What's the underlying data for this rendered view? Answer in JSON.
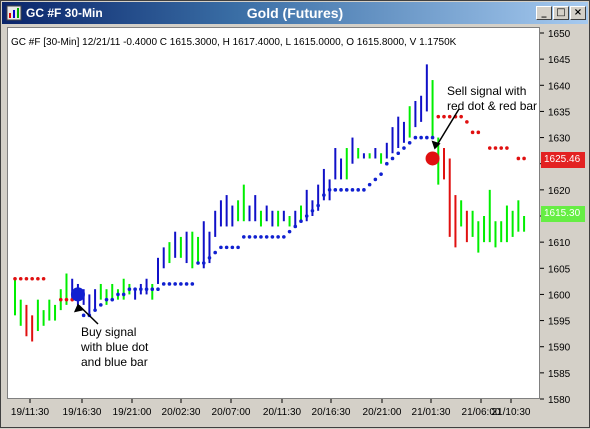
{
  "window": {
    "title_left": "GC #F 30-Min",
    "title_center": "Gold (Futures)",
    "buttons": {
      "minimize": "_",
      "maximize": "□",
      "close": "×"
    }
  },
  "info_line": "GC #F [30-Min] 12/21/11  -0.4000  C 1615.3000, H 1617.4000, L 1615.0000, O 1615.8000, V 1.1750K",
  "annotations": {
    "buy": "Buy signal\nwith blue dot\nand blue bar",
    "sell": "Sell signal with\nred dot & red bar"
  },
  "price_tags": {
    "red": "1625.46",
    "green": "1615.30"
  },
  "colors": {
    "up": "#00ee00",
    "down": "#1010c8",
    "red": "#e01010",
    "blue_dot": "#1020d0"
  },
  "chart_data": {
    "type": "bar",
    "ylim": [
      1580,
      1650
    ],
    "y_ticks": [
      1580,
      1585,
      1590,
      1595,
      1600,
      1605,
      1610,
      1615,
      1620,
      1625,
      1630,
      1635,
      1640,
      1645,
      1650
    ],
    "x_tick_labels": [
      "19/11:30",
      "19/16:30",
      "19/21:00",
      "20/02:30",
      "20/07:00",
      "20/11:30",
      "20/16:30",
      "20/21:00",
      "21/01:30",
      "21/06:00",
      "21/10:30"
    ],
    "bars": [
      [
        1603,
        1596,
        "g"
      ],
      [
        1599,
        1594,
        "g"
      ],
      [
        1598,
        1592,
        "r"
      ],
      [
        1596,
        1591,
        "r"
      ],
      [
        1599,
        1593,
        "g"
      ],
      [
        1597,
        1594,
        "g"
      ],
      [
        1599,
        1595,
        "g"
      ],
      [
        1598,
        1595,
        "g"
      ],
      [
        1601,
        1597,
        "g"
      ],
      [
        1604,
        1598,
        "g"
      ],
      [
        1603,
        1599,
        "b"
      ],
      [
        1602,
        1598,
        "b"
      ],
      [
        1601,
        1598,
        "b"
      ],
      [
        1600,
        1596,
        "b"
      ],
      [
        1601,
        1597,
        "b"
      ],
      [
        1602,
        1599,
        "g"
      ],
      [
        1601,
        1598,
        "g"
      ],
      [
        1602,
        1599,
        "g"
      ],
      [
        1601,
        1599,
        "g"
      ],
      [
        1603,
        1599,
        "g"
      ],
      [
        1602,
        1600,
        "g"
      ],
      [
        1601,
        1599,
        "b"
      ],
      [
        1602,
        1600,
        "b"
      ],
      [
        1603,
        1600,
        "b"
      ],
      [
        1602,
        1599,
        "g"
      ],
      [
        1607,
        1602,
        "b"
      ],
      [
        1609,
        1605,
        "b"
      ],
      [
        1610,
        1606,
        "g"
      ],
      [
        1612,
        1607,
        "b"
      ],
      [
        1611,
        1607,
        "g"
      ],
      [
        1612,
        1606,
        "b"
      ],
      [
        1612,
        1605,
        "g"
      ],
      [
        1611,
        1606,
        "g"
      ],
      [
        1614,
        1605,
        "b"
      ],
      [
        1612,
        1606,
        "b"
      ],
      [
        1616,
        1611,
        "b"
      ],
      [
        1618,
        1613,
        "b"
      ],
      [
        1619,
        1613,
        "b"
      ],
      [
        1617,
        1613,
        "b"
      ],
      [
        1618,
        1614,
        "g"
      ],
      [
        1621,
        1614,
        "g"
      ],
      [
        1617,
        1614,
        "b"
      ],
      [
        1619,
        1614,
        "b"
      ],
      [
        1616,
        1613,
        "g"
      ],
      [
        1617,
        1614,
        "b"
      ],
      [
        1616,
        1613,
        "b"
      ],
      [
        1616,
        1613,
        "g"
      ],
      [
        1616,
        1614,
        "b"
      ],
      [
        1615,
        1613,
        "g"
      ],
      [
        1616,
        1613,
        "b"
      ],
      [
        1617,
        1614,
        "g"
      ],
      [
        1620,
        1614,
        "b"
      ],
      [
        1618,
        1615,
        "b"
      ],
      [
        1621,
        1616,
        "b"
      ],
      [
        1624,
        1618,
        "b"
      ],
      [
        1622,
        1618,
        "b"
      ],
      [
        1628,
        1622,
        "b"
      ],
      [
        1626,
        1622,
        "b"
      ],
      [
        1628,
        1622,
        "g"
      ],
      [
        1630,
        1625,
        "b"
      ],
      [
        1628,
        1626,
        "g"
      ],
      [
        1627,
        1626,
        "b"
      ],
      [
        1627,
        1626,
        "g"
      ],
      [
        1628,
        1626,
        "b"
      ],
      [
        1627,
        1625,
        "g"
      ],
      [
        1629,
        1626,
        "b"
      ],
      [
        1632,
        1627,
        "b"
      ],
      [
        1634,
        1628,
        "b"
      ],
      [
        1633,
        1629,
        "b"
      ],
      [
        1636,
        1630,
        "g"
      ],
      [
        1637,
        1632,
        "b"
      ],
      [
        1638,
        1633,
        "b"
      ],
      [
        1644,
        1635,
        "b"
      ],
      [
        1641,
        1630,
        "g"
      ],
      [
        1630,
        1621,
        "g"
      ],
      [
        1628,
        1622,
        "r"
      ],
      [
        1626,
        1611,
        "r"
      ],
      [
        1619,
        1609,
        "r"
      ],
      [
        1618,
        1613,
        "g"
      ],
      [
        1616,
        1610,
        "r"
      ],
      [
        1616,
        1611,
        "g"
      ],
      [
        1614,
        1608,
        "g"
      ],
      [
        1615,
        1610,
        "g"
      ],
      [
        1620,
        1610,
        "g"
      ],
      [
        1614,
        1609,
        "g"
      ],
      [
        1614,
        1610,
        "g"
      ],
      [
        1617,
        1610,
        "g"
      ],
      [
        1616,
        1611,
        "g"
      ],
      [
        1618,
        1612,
        "g"
      ],
      [
        1615,
        1612,
        "g"
      ]
    ],
    "dots": [
      [
        0,
        1603,
        "r"
      ],
      [
        1,
        1603,
        "r"
      ],
      [
        2,
        1603,
        "r"
      ],
      [
        3,
        1603,
        "r"
      ],
      [
        4,
        1603,
        "r"
      ],
      [
        5,
        1603,
        "r"
      ],
      [
        8,
        1599,
        "r"
      ],
      [
        9,
        1599,
        "r"
      ],
      [
        10,
        1599,
        "r"
      ],
      [
        11,
        1600,
        "b"
      ],
      [
        12,
        1596,
        "b"
      ],
      [
        13,
        1596,
        "b"
      ],
      [
        14,
        1597,
        "b"
      ],
      [
        15,
        1598,
        "b"
      ],
      [
        16,
        1599,
        "b"
      ],
      [
        17,
        1599,
        "b"
      ],
      [
        18,
        1600,
        "b"
      ],
      [
        19,
        1600,
        "b"
      ],
      [
        20,
        1601,
        "b"
      ],
      [
        21,
        1601,
        "b"
      ],
      [
        22,
        1601,
        "b"
      ],
      [
        23,
        1601,
        "b"
      ],
      [
        24,
        1601,
        "b"
      ],
      [
        25,
        1601,
        "b"
      ],
      [
        26,
        1602,
        "b"
      ],
      [
        27,
        1602,
        "b"
      ],
      [
        28,
        1602,
        "b"
      ],
      [
        29,
        1602,
        "b"
      ],
      [
        30,
        1602,
        "b"
      ],
      [
        31,
        1602,
        "b"
      ],
      [
        32,
        1606,
        "b"
      ],
      [
        33,
        1606,
        "b"
      ],
      [
        34,
        1607,
        "b"
      ],
      [
        35,
        1608,
        "b"
      ],
      [
        36,
        1609,
        "b"
      ],
      [
        37,
        1609,
        "b"
      ],
      [
        38,
        1609,
        "b"
      ],
      [
        39,
        1609,
        "b"
      ],
      [
        40,
        1611,
        "b"
      ],
      [
        41,
        1611,
        "b"
      ],
      [
        42,
        1611,
        "b"
      ],
      [
        43,
        1611,
        "b"
      ],
      [
        44,
        1611,
        "b"
      ],
      [
        45,
        1611,
        "b"
      ],
      [
        46,
        1611,
        "b"
      ],
      [
        47,
        1611,
        "b"
      ],
      [
        48,
        1612,
        "b"
      ],
      [
        49,
        1613,
        "b"
      ],
      [
        50,
        1614,
        "b"
      ],
      [
        51,
        1615,
        "b"
      ],
      [
        52,
        1616,
        "b"
      ],
      [
        53,
        1617,
        "b"
      ],
      [
        54,
        1619,
        "b"
      ],
      [
        55,
        1620,
        "b"
      ],
      [
        56,
        1620,
        "b"
      ],
      [
        57,
        1620,
        "b"
      ],
      [
        58,
        1620,
        "b"
      ],
      [
        59,
        1620,
        "b"
      ],
      [
        60,
        1620,
        "b"
      ],
      [
        61,
        1620,
        "b"
      ],
      [
        62,
        1621,
        "b"
      ],
      [
        63,
        1622,
        "b"
      ],
      [
        64,
        1623,
        "b"
      ],
      [
        65,
        1625,
        "b"
      ],
      [
        66,
        1626,
        "b"
      ],
      [
        67,
        1627,
        "b"
      ],
      [
        68,
        1628,
        "b"
      ],
      [
        69,
        1629,
        "b"
      ],
      [
        70,
        1630,
        "b"
      ],
      [
        71,
        1630,
        "b"
      ],
      [
        72,
        1630,
        "b"
      ],
      [
        73,
        1630,
        "b"
      ],
      [
        74,
        1634,
        "r"
      ],
      [
        75,
        1634,
        "r"
      ],
      [
        76,
        1634,
        "r"
      ],
      [
        77,
        1634,
        "r"
      ],
      [
        78,
        1634,
        "r"
      ],
      [
        79,
        1633,
        "r"
      ],
      [
        80,
        1631,
        "r"
      ],
      [
        81,
        1631,
        "r"
      ],
      [
        83,
        1628,
        "r"
      ],
      [
        84,
        1628,
        "r"
      ],
      [
        85,
        1628,
        "r"
      ],
      [
        86,
        1628,
        "r"
      ],
      [
        88,
        1626,
        "r"
      ],
      [
        89,
        1626,
        "r"
      ]
    ],
    "signals": [
      {
        "bar": 11,
        "price": 1600,
        "color": "b"
      },
      {
        "bar": 73,
        "price": 1626,
        "color": "r"
      }
    ]
  }
}
